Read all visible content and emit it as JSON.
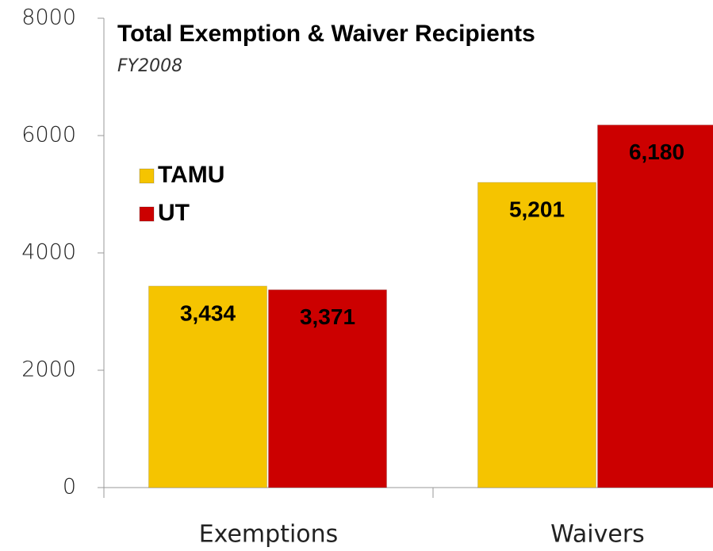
{
  "chart_data": {
    "type": "bar",
    "title": "Total Exemption & Waiver Recipients",
    "subtitle": "FY2008",
    "categories": [
      "Exemptions",
      "Waivers"
    ],
    "series": [
      {
        "name": "TAMU",
        "color": "#f5c400",
        "values": [
          3434,
          5201
        ],
        "value_labels": [
          "3,434",
          "5,201"
        ]
      },
      {
        "name": "UT",
        "color": "#cc0000",
        "values": [
          3371,
          6180
        ],
        "value_labels": [
          "3,371",
          "6,180"
        ]
      }
    ],
    "ylim": [
      0,
      8000
    ],
    "yticks": [
      0,
      2000,
      4000,
      6000,
      8000
    ],
    "legend": "upper left"
  }
}
